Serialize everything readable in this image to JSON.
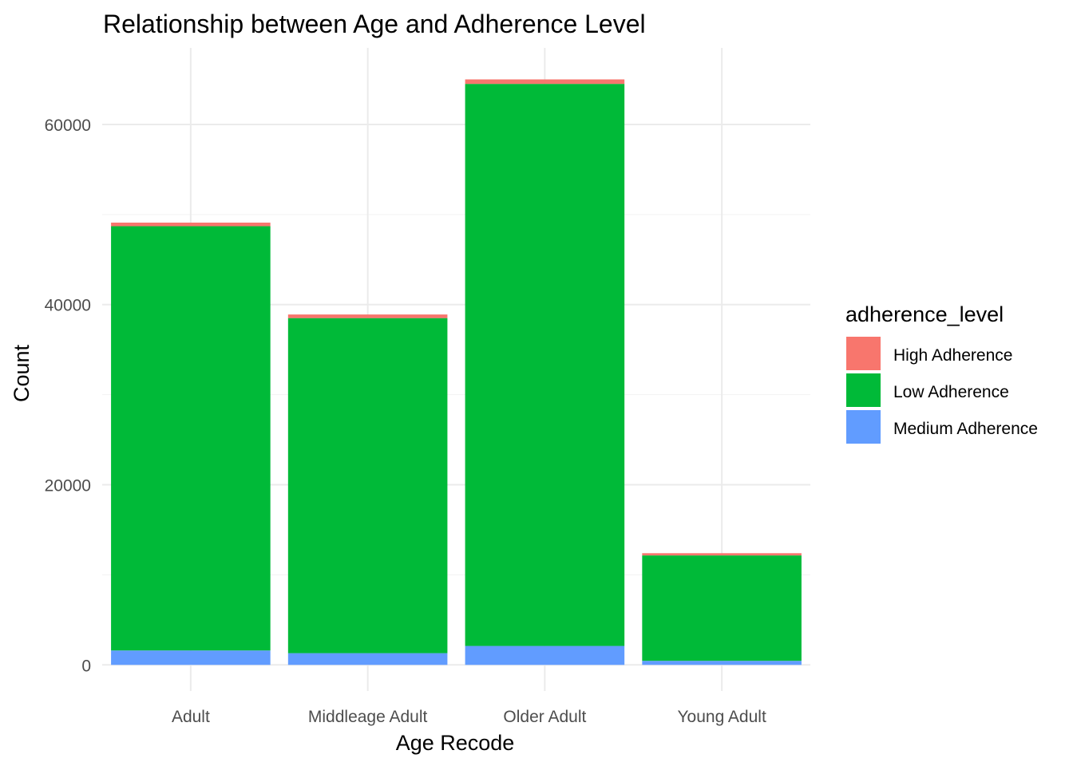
{
  "chart_data": {
    "type": "bar",
    "stacked": true,
    "title": "Relationship between Age and Adherence Level",
    "xlabel": "Age Recode",
    "ylabel": "Count",
    "categories": [
      "Adult",
      "Middleage Adult",
      "Older Adult",
      "Young Adult"
    ],
    "series": [
      {
        "name": "Medium Adherence",
        "color": "#619CFF",
        "values": [
          1600,
          1300,
          2100,
          450
        ]
      },
      {
        "name": "Low Adherence",
        "color": "#00BA38",
        "values": [
          47100,
          37200,
          62400,
          11700
        ]
      },
      {
        "name": "High Adherence",
        "color": "#F8766D",
        "values": [
          400,
          400,
          500,
          250
        ]
      }
    ],
    "stack_order_top_to_bottom": [
      "High Adherence",
      "Low Adherence",
      "Medium Adherence"
    ],
    "ylim": [
      -2900,
      68500
    ],
    "yticks": [
      0,
      20000,
      40000,
      60000
    ],
    "yticks_minor": [
      10000,
      30000,
      50000
    ],
    "grid": true,
    "legend": {
      "title": "adherence_level",
      "position": "right",
      "items": [
        "High Adherence",
        "Low Adherence",
        "Medium Adherence"
      ]
    }
  }
}
